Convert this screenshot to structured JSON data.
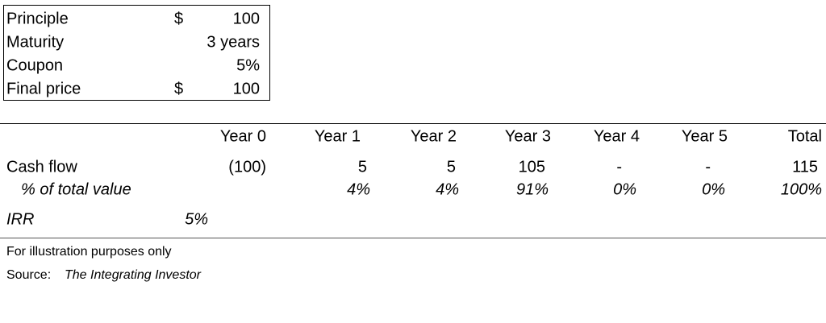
{
  "inputs": {
    "rows": [
      {
        "label": "Principle",
        "currency": "$",
        "value": "100"
      },
      {
        "label": "Maturity",
        "value": "3 years"
      },
      {
        "label": "Coupon",
        "value": "5%"
      },
      {
        "label": "Final price",
        "currency": "$",
        "value": "100"
      }
    ]
  },
  "table": {
    "header": [
      "Year 0",
      "Year 1",
      "Year 2",
      "Year 3",
      "Year 4",
      "Year 5",
      "Total"
    ],
    "rows": [
      {
        "label": "Cash flow",
        "values": [
          "(100)",
          "5",
          "5",
          "105",
          "-",
          "-",
          "115"
        ]
      },
      {
        "label": "% of total value",
        "values": [
          null,
          "4%",
          "4%",
          "91%",
          "0%",
          "0%",
          "100%"
        ]
      }
    ],
    "irr": {
      "label": "IRR",
      "value": "5%"
    }
  },
  "notes": {
    "illustration": "For illustration purposes only",
    "source_label": "Source:",
    "source": "The Integrating Investor"
  }
}
